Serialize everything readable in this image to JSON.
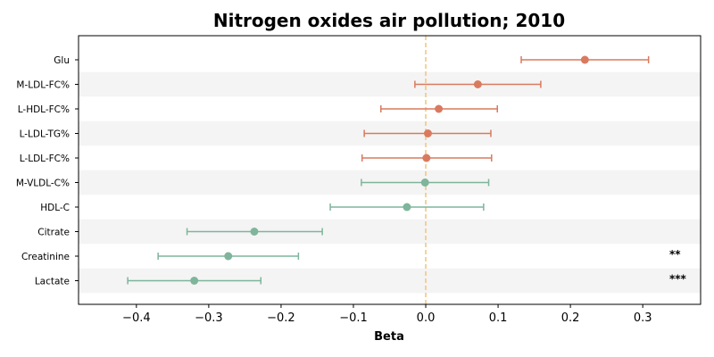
{
  "chart_data": {
    "type": "forest",
    "title": "Nitrogen oxides air pollution; 2010",
    "xlabel": "Beta",
    "ylabel": "",
    "xlim": [
      -0.48,
      0.38
    ],
    "xticks": [
      -0.4,
      -0.3,
      -0.2,
      -0.1,
      0.0,
      0.1,
      0.2,
      0.3
    ],
    "xtick_labels": [
      "−0.4",
      "−0.3",
      "−0.2",
      "−0.1",
      "0.0",
      "0.1",
      "0.2",
      "0.3"
    ],
    "reference_line": {
      "x": 0.0,
      "style": "dashed",
      "color": "#f5c27a"
    },
    "grid": false,
    "row_banding": true,
    "colors": {
      "positive": "#d97a5f",
      "negative": "#7fb59b",
      "band": "#f4f4f4"
    },
    "categories": [
      "Glu",
      "M-LDL-FC%",
      "L-HDL-FC%",
      "L-LDL-TG%",
      "L-LDL-FC%",
      "M-VLDL-C%",
      "HDL-C",
      "Citrate",
      "Creatinine",
      "Lactate"
    ],
    "beta": [
      0.22,
      0.072,
      0.018,
      0.003,
      0.001,
      -0.001,
      -0.026,
      -0.237,
      -0.273,
      -0.32
    ],
    "ci_lower": [
      0.132,
      -0.015,
      -0.062,
      -0.085,
      -0.088,
      -0.089,
      -0.132,
      -0.33,
      -0.37,
      -0.412
    ],
    "ci_upper": [
      0.308,
      0.159,
      0.099,
      0.09,
      0.091,
      0.087,
      0.08,
      -0.143,
      -0.176,
      -0.228
    ],
    "significance": [
      "",
      "",
      "",
      "",
      "",
      "",
      "",
      "",
      "**",
      "***"
    ]
  }
}
